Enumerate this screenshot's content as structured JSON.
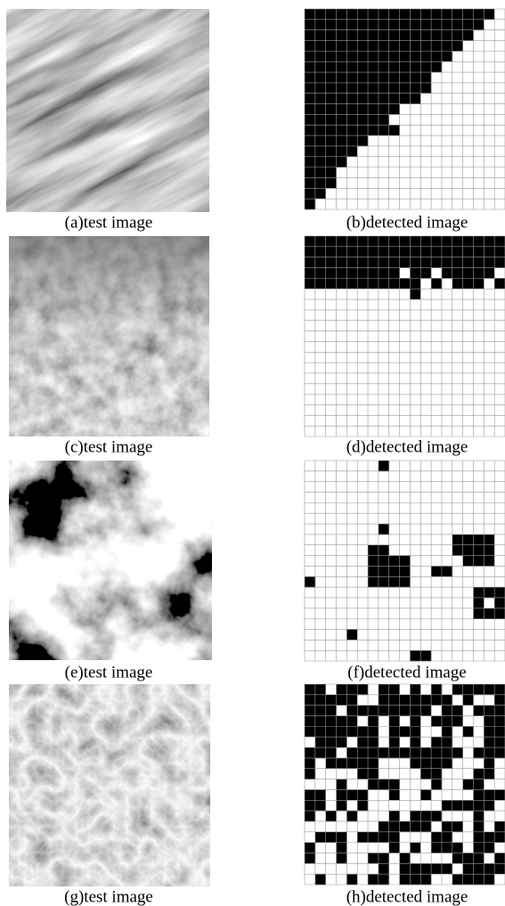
{
  "panels": [
    {
      "test_caption": "(a)test image",
      "detected_caption": "(b)detected image"
    },
    {
      "test_caption": "(c)test image",
      "detected_caption": "(d)detected image"
    },
    {
      "test_caption": "(e)test image",
      "detected_caption": "(f)detected image"
    },
    {
      "test_caption": "(g)test image",
      "detected_caption": "(h)detected image"
    }
  ]
}
